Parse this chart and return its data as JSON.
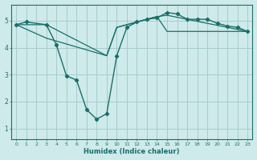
{
  "xlabel": "Humidex (Indice chaleur)",
  "background_color": "#ceeaea",
  "grid_color": "#a8cccc",
  "line_color": "#1a6e6a",
  "xlim": [
    -0.5,
    23.5
  ],
  "ylim": [
    0.6,
    5.6
  ],
  "yticks": [
    1,
    2,
    3,
    4,
    5
  ],
  "xticks": [
    0,
    1,
    2,
    3,
    4,
    5,
    6,
    7,
    8,
    9,
    10,
    11,
    12,
    13,
    14,
    15,
    16,
    17,
    18,
    19,
    20,
    21,
    22,
    23
  ],
  "series1_x": [
    0,
    1,
    3,
    4,
    5,
    6,
    7,
    8,
    9,
    10,
    11,
    12,
    13,
    14,
    15,
    16,
    17,
    18,
    19,
    20,
    21,
    22,
    23
  ],
  "series1_y": [
    4.85,
    4.95,
    4.85,
    4.1,
    2.95,
    2.8,
    1.7,
    1.35,
    1.55,
    3.7,
    4.75,
    4.95,
    5.05,
    5.1,
    5.3,
    5.25,
    5.05,
    5.05,
    5.05,
    4.9,
    4.8,
    4.75,
    4.6
  ],
  "series2_x": [
    0,
    3,
    9,
    10,
    14,
    15,
    23
  ],
  "series2_y": [
    4.85,
    4.85,
    3.7,
    4.75,
    5.15,
    5.2,
    4.6
  ],
  "series3_x": [
    0,
    3,
    9,
    10,
    14,
    15,
    23
  ],
  "series3_y": [
    4.85,
    4.35,
    3.7,
    4.75,
    5.15,
    4.6,
    4.6
  ]
}
